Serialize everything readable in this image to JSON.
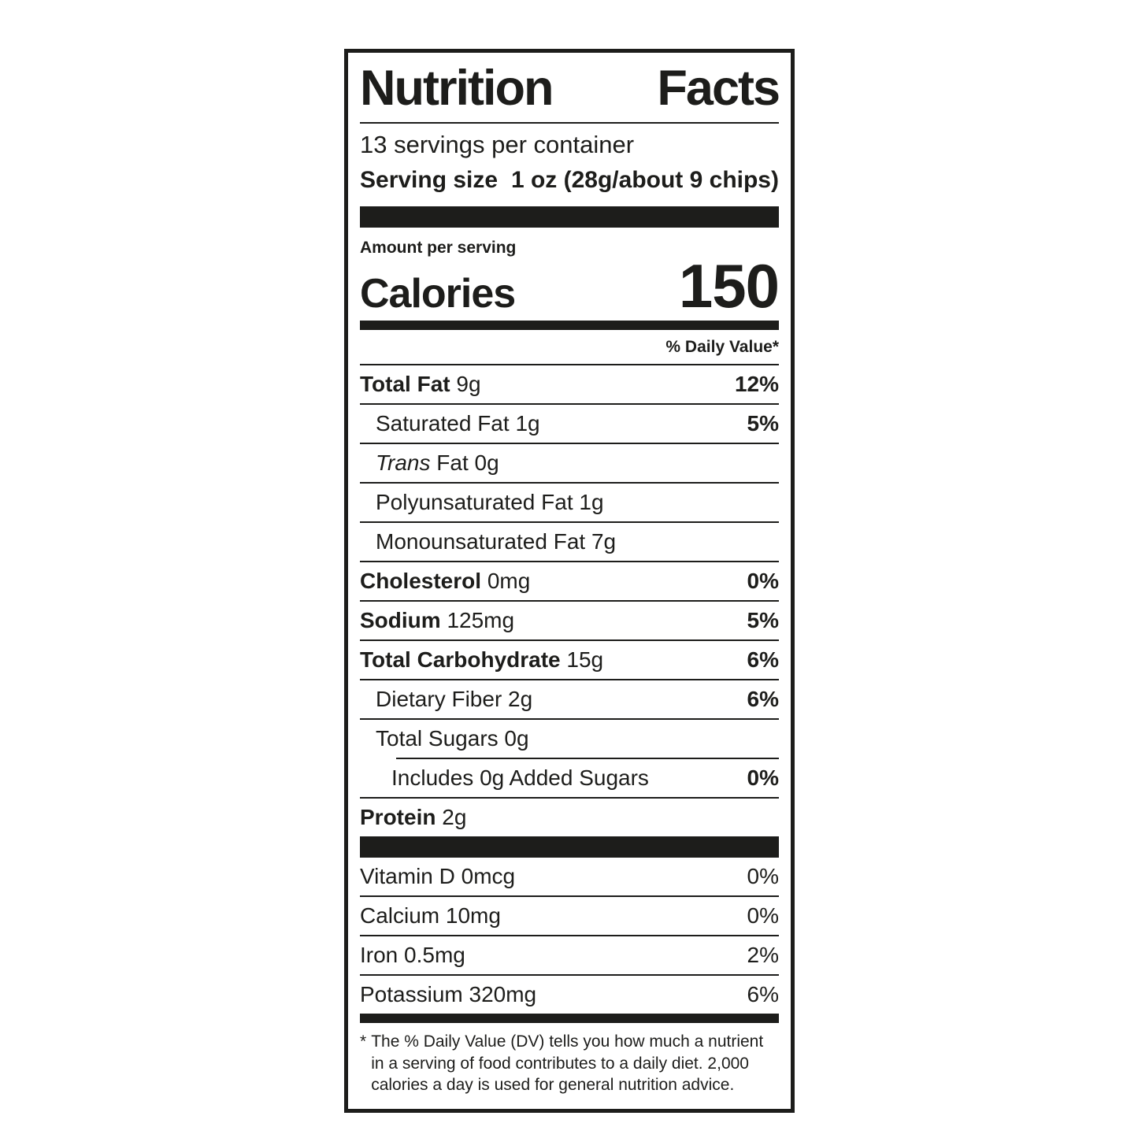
{
  "colors": {
    "ink": "#1d1d1b",
    "paper": "#ffffff"
  },
  "label": {
    "title": {
      "left": "Nutrition",
      "right": "Facts"
    },
    "servings_per_container": "13 servings per container",
    "serving_size": {
      "label": "Serving size",
      "value": "1 oz (28g/about 9 chips)"
    },
    "amount_per_serving": "Amount per serving",
    "calories": {
      "label": "Calories",
      "value": "150"
    },
    "daily_value_header": "% Daily Value*",
    "nutrients": [
      {
        "bold": "Total Fat",
        "amount": "9g",
        "dv": "12%"
      },
      {
        "text": "Saturated Fat",
        "amount": "1g",
        "dv": "5%"
      },
      {
        "italic": "Trans",
        "text": "Fat",
        "amount": "0g"
      },
      {
        "text": "Polyunsaturated Fat",
        "amount": "1g"
      },
      {
        "text": "Monounsaturated Fat",
        "amount": "7g"
      },
      {
        "bold": "Cholesterol",
        "amount": "0mg",
        "dv": "0%"
      },
      {
        "bold": "Sodium",
        "amount": "125mg",
        "dv": "5%"
      },
      {
        "bold": "Total Carbohydrate",
        "amount": "15g",
        "dv": "6%"
      },
      {
        "text": "Dietary Fiber",
        "amount": "2g",
        "dv": "6%"
      },
      {
        "text": "Total Sugars",
        "amount": "0g"
      },
      {
        "text": "Includes 0g Added Sugars",
        "dv": "0%"
      },
      {
        "bold": "Protein",
        "amount": "2g"
      }
    ],
    "micronutrients": [
      {
        "text": "Vitamin D 0mcg",
        "dv": "0%"
      },
      {
        "text": "Calcium 10mg",
        "dv": "0%"
      },
      {
        "text": "Iron 0.5mg",
        "dv": "2%"
      },
      {
        "text": "Potassium 320mg",
        "dv": "6%"
      }
    ],
    "footnote": {
      "marker": "*",
      "text": "The % Daily Value (DV) tells you how much a nutrient in a serving of food contributes to a daily diet. 2,000 calories a day is used for general nutrition advice."
    }
  }
}
